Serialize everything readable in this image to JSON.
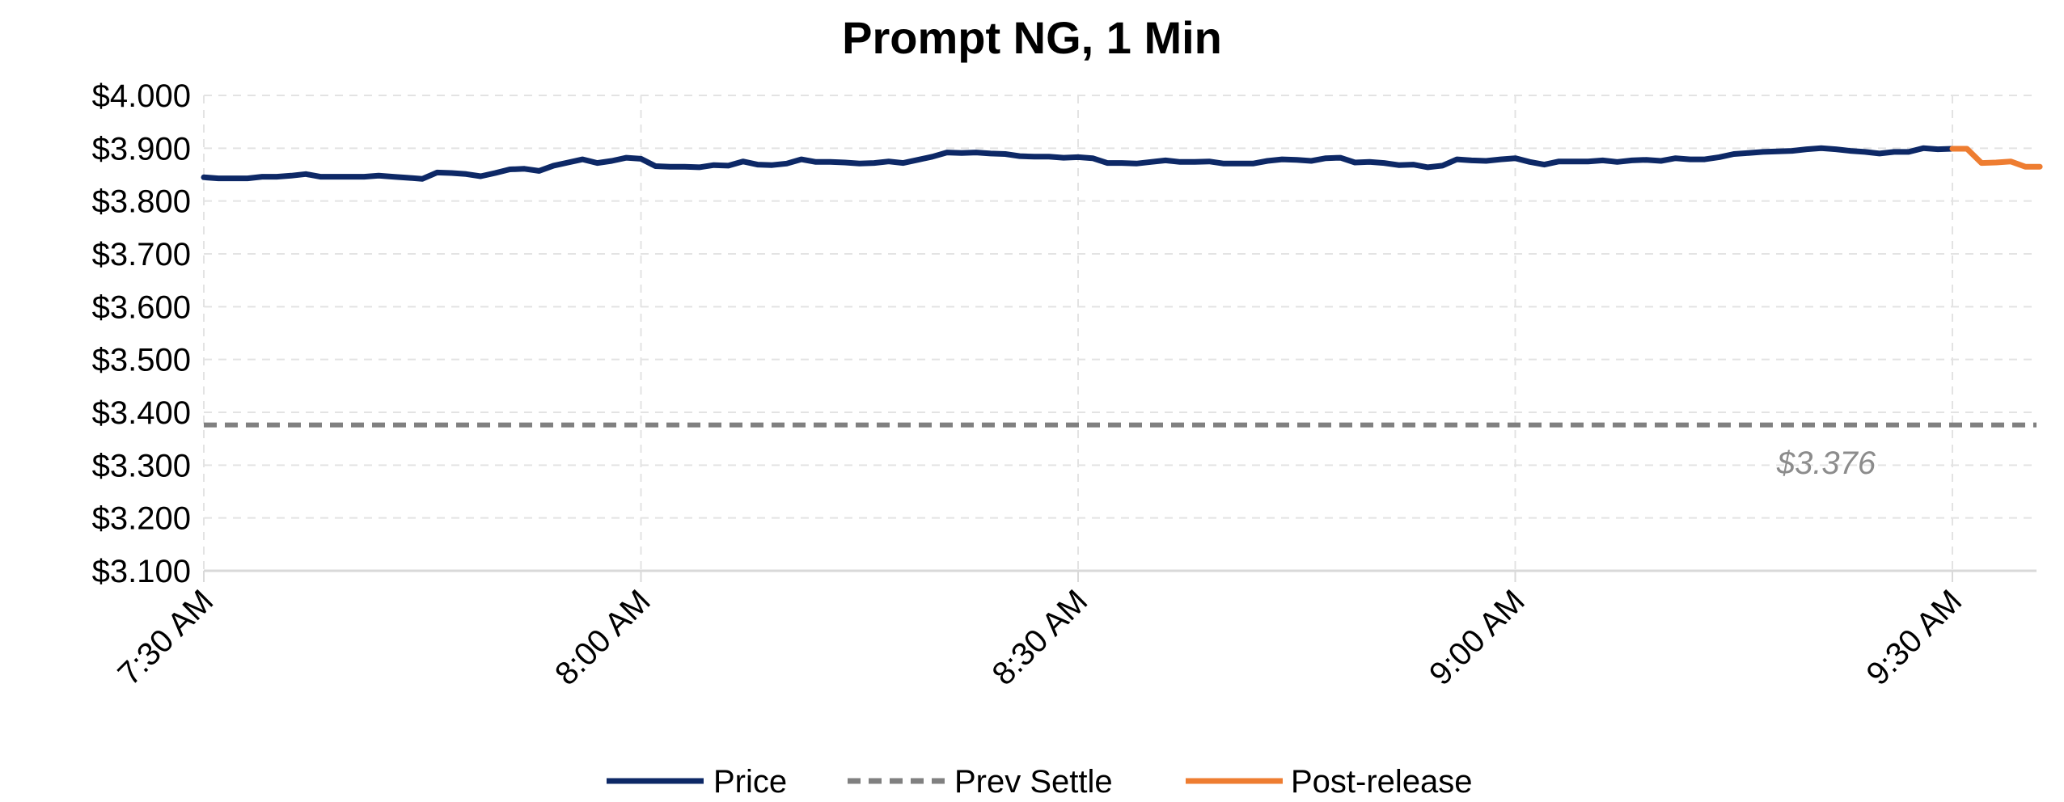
{
  "colors": {
    "price": "#0d2866",
    "settle": "#808080",
    "post": "#ee7d31",
    "grid": "#e3e3e3",
    "axis": "#d9d9d9"
  },
  "chart_data": {
    "type": "line",
    "title": "Prompt NG, 1 Min",
    "xlabel": "",
    "ylabel": "",
    "ylim": [
      3.1,
      4.0
    ],
    "y_tick_labels": [
      "$4.000",
      "$3.900",
      "$3.800",
      "$3.700",
      "$3.600",
      "$3.500",
      "$3.400",
      "$3.300",
      "$3.200",
      "$3.100"
    ],
    "y_ticks": [
      4.0,
      3.9,
      3.8,
      3.7,
      3.6,
      3.5,
      3.4,
      3.3,
      3.2,
      3.1
    ],
    "x_tick_labels": [
      "7:30 AM",
      "8:00 AM",
      "8:30 AM",
      "9:00 AM",
      "9:30 AM"
    ],
    "x_ticks_minutes_after_730": [
      0,
      30,
      60,
      90,
      120
    ],
    "xlim_minutes_after_730": [
      0,
      126
    ],
    "grid": true,
    "legend_position": "bottom",
    "series": [
      {
        "name": "Price",
        "minutes_after_730": [
          0,
          1,
          2,
          3,
          4,
          5,
          6,
          7,
          8,
          9,
          10,
          11,
          12,
          13,
          14,
          15,
          16,
          17,
          18,
          19,
          20,
          21,
          22,
          23,
          24,
          25,
          26,
          27,
          28,
          29,
          30,
          31,
          32,
          33,
          34,
          35,
          36,
          37,
          38,
          39,
          40,
          41,
          42,
          43,
          44,
          45,
          46,
          47,
          48,
          49,
          50,
          51,
          52,
          53,
          54,
          55,
          56,
          57,
          58,
          59,
          60,
          61,
          62,
          63,
          64,
          65,
          66,
          67,
          68,
          69,
          70,
          71,
          72,
          73,
          74,
          75,
          76,
          77,
          78,
          79,
          80,
          81,
          82,
          83,
          84,
          85,
          86,
          87,
          88,
          89,
          90,
          91,
          92,
          93,
          94,
          95,
          96,
          97,
          98,
          99,
          100,
          101,
          102,
          103,
          104,
          105,
          106,
          107,
          108,
          109,
          110,
          111,
          112,
          113,
          114,
          115,
          116,
          117,
          118,
          119,
          120
        ],
        "values": [
          3.845,
          3.843,
          3.843,
          3.843,
          3.846,
          3.846,
          3.848,
          3.851,
          3.846,
          3.846,
          3.846,
          3.846,
          3.848,
          3.846,
          3.844,
          3.842,
          3.854,
          3.853,
          3.851,
          3.847,
          3.853,
          3.86,
          3.861,
          3.857,
          3.867,
          3.873,
          3.879,
          3.872,
          3.876,
          3.882,
          3.88,
          3.866,
          3.865,
          3.865,
          3.864,
          3.868,
          3.867,
          3.875,
          3.869,
          3.868,
          3.871,
          3.879,
          3.874,
          3.874,
          3.873,
          3.871,
          3.872,
          3.875,
          3.872,
          3.878,
          3.884,
          3.892,
          3.891,
          3.892,
          3.89,
          3.889,
          3.885,
          3.884,
          3.884,
          3.882,
          3.883,
          3.881,
          3.872,
          3.872,
          3.871,
          3.874,
          3.877,
          3.874,
          3.874,
          3.875,
          3.871,
          3.871,
          3.871,
          3.876,
          3.879,
          3.878,
          3.876,
          3.881,
          3.882,
          3.873,
          3.874,
          3.872,
          3.868,
          3.869,
          3.864,
          3.867,
          3.879,
          3.877,
          3.876,
          3.879,
          3.881,
          3.874,
          3.869,
          3.875,
          3.875,
          3.875,
          3.877,
          3.874,
          3.877,
          3.878,
          3.876,
          3.881,
          3.879,
          3.879,
          3.883,
          3.889,
          3.891,
          3.893,
          3.894,
          3.895,
          3.898,
          3.9,
          3.898,
          3.895,
          3.893,
          3.89,
          3.893,
          3.893,
          3.9,
          3.898,
          3.899
        ]
      },
      {
        "name": "Prev Settle",
        "value": 3.376,
        "label": "$3.376"
      },
      {
        "name": "Post-release",
        "minutes_after_730": [
          120,
          121,
          122,
          123,
          124,
          125,
          126
        ],
        "values": [
          3.899,
          3.899,
          3.872,
          3.873,
          3.875,
          3.865,
          3.865
        ]
      }
    ]
  }
}
